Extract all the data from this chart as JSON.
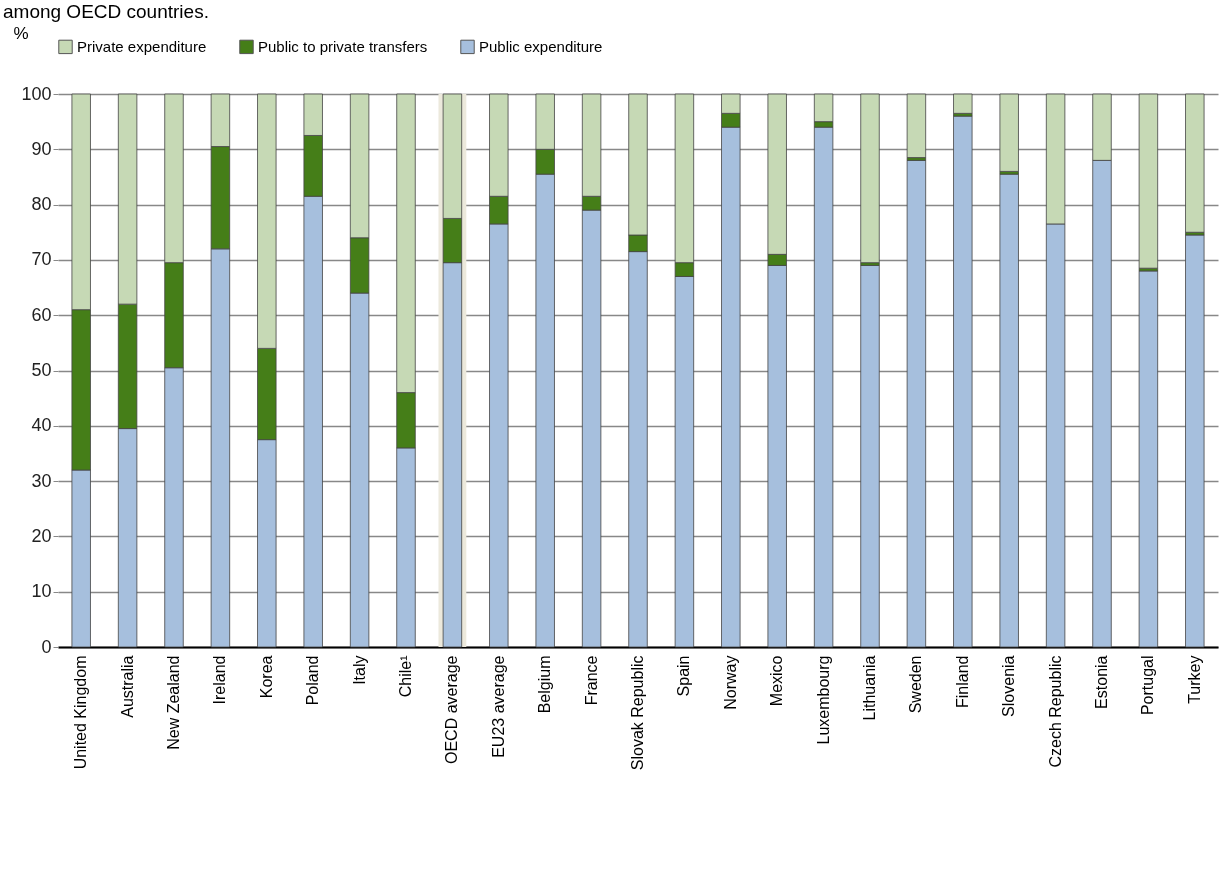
{
  "chart_data": {
    "type": "bar",
    "title": "among OECD countries.",
    "ylabel": "%",
    "stacked": true,
    "legend": "top",
    "grid": "y",
    "categories": [
      "United Kingdom",
      "Australia",
      "New Zealand",
      "Ireland",
      "Korea",
      "Poland",
      "Italy",
      "Chile¹",
      "OECD average",
      "EU23 average",
      "Belgium",
      "France",
      "Slovak Republic",
      "Spain",
      "Norway",
      "Mexico",
      "Luxembourg",
      "Lithuania",
      "Sweden",
      "Finland",
      "Slovenia",
      "Czech Republic",
      "Estonia",
      "Portugal",
      "Turkey"
    ],
    "series": [
      {
        "name": "Public expenditure",
        "color": "#a6bfdd",
        "values": [
          32,
          39.5,
          50.5,
          72,
          37.5,
          81.5,
          64,
          36,
          69.5,
          76.5,
          85.5,
          79,
          71.5,
          67,
          94,
          69,
          94,
          69,
          88,
          96,
          85.5,
          76.5,
          88,
          68,
          74.5
        ]
      },
      {
        "name": "Public to private transfers",
        "color": "#457e18",
        "values": [
          29,
          22.5,
          19,
          18.5,
          16.5,
          11,
          10,
          10,
          8,
          5,
          4.5,
          2.5,
          3,
          2.5,
          2.5,
          2,
          1,
          0.5,
          0.5,
          0.5,
          0.5,
          0,
          0,
          0.5,
          0.5
        ]
      },
      {
        "name": "Private expenditure",
        "color": "#c6d9b5",
        "values": [
          39,
          38,
          30.5,
          9.5,
          46,
          7.5,
          26,
          54,
          22.5,
          18.5,
          10,
          18.5,
          25.5,
          30.5,
          3.5,
          29,
          5,
          30.5,
          11.5,
          3.5,
          14,
          23.5,
          12,
          31.5,
          25
        ]
      }
    ],
    "ylim": [
      0,
      100
    ],
    "yticks": [
      0,
      10,
      20,
      30,
      40,
      50,
      60,
      70,
      80,
      90,
      100
    ],
    "bands": [
      {
        "axis": "x",
        "from": "OECD average",
        "to": "OECD average",
        "color": "#ece9dc"
      }
    ]
  }
}
